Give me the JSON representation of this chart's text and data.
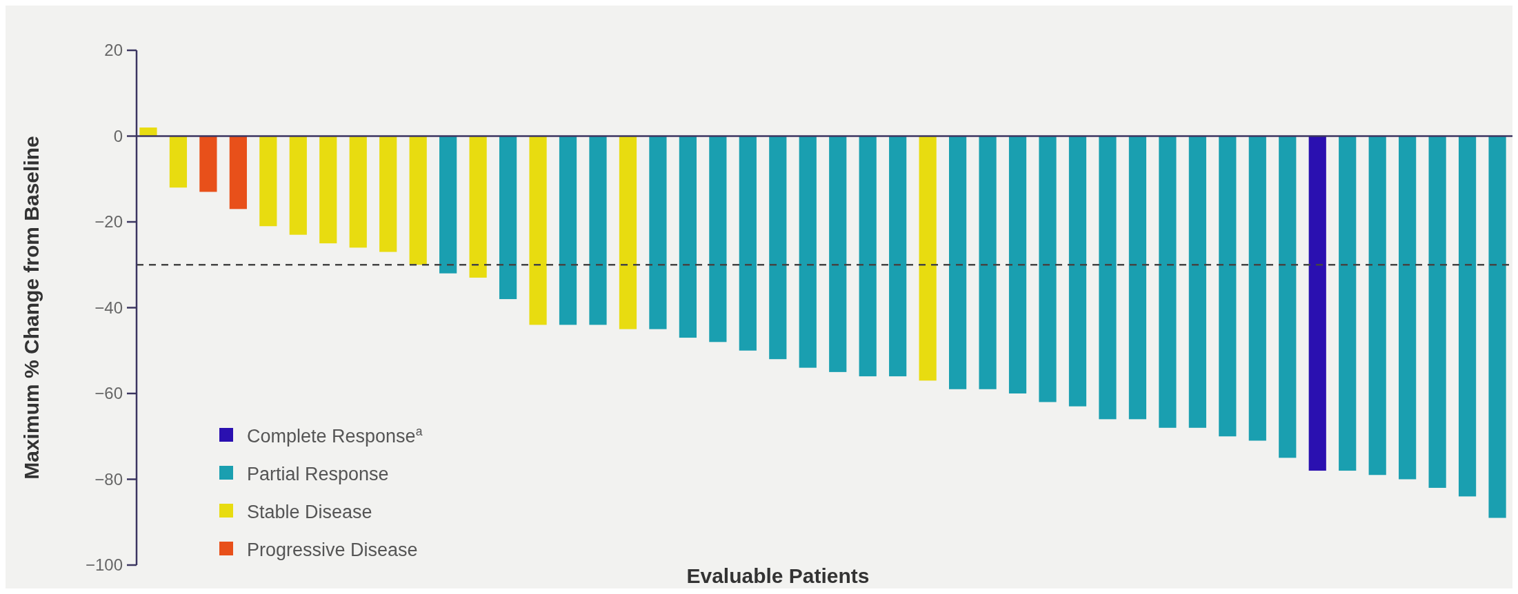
{
  "chart_data": {
    "type": "bar",
    "xlabel": "Evaluable Patients",
    "ylabel": "Maximum % Change from Baseline",
    "categories": [
      null,
      null,
      null,
      null,
      null,
      null,
      null,
      null,
      null,
      null,
      null,
      null,
      null,
      null,
      null,
      null,
      null,
      null,
      null,
      null,
      null,
      null,
      null,
      null,
      null,
      null,
      null,
      null,
      null,
      null,
      null,
      null,
      null,
      null,
      null,
      null,
      null,
      null,
      null,
      null,
      null,
      null,
      null,
      null,
      null,
      null
    ],
    "series": [
      {
        "name": "Complete Response$^{a}$",
        "color": "#2a10b0",
        "values": [
          null,
          null,
          null,
          null,
          null,
          null,
          null,
          null,
          null,
          null,
          null,
          null,
          null,
          null,
          null,
          null,
          null,
          null,
          null,
          null,
          null,
          null,
          null,
          null,
          null,
          null,
          null,
          null,
          null,
          null,
          null,
          null,
          null,
          null,
          null,
          null,
          null,
          null,
          null,
          -78,
          null,
          null,
          null,
          null,
          null,
          null
        ]
      },
      {
        "name": "Partial Response",
        "color": "#1a9fb0",
        "values": [
          null,
          null,
          null,
          null,
          null,
          null,
          null,
          null,
          null,
          null,
          -32,
          null,
          -38,
          null,
          -44,
          -44,
          null,
          -45,
          -47,
          -48,
          -50,
          -52,
          -54,
          -55,
          -56,
          -56,
          null,
          -59,
          -59,
          -60,
          -62,
          -63,
          -66,
          -66,
          -68,
          -68,
          -70,
          -71,
          -75,
          null,
          -78,
          -79,
          -80,
          -82,
          -84,
          -89
        ]
      },
      {
        "name": "Stable Disease",
        "color": "#e8dc10",
        "values": [
          2,
          -12,
          null,
          null,
          -21,
          -23,
          -25,
          -26,
          -27,
          -30,
          null,
          -33,
          null,
          -44,
          null,
          null,
          -45,
          null,
          null,
          null,
          null,
          null,
          null,
          null,
          null,
          null,
          -57,
          null,
          null,
          null,
          null,
          null,
          null,
          null,
          null,
          null,
          null,
          null,
          null,
          null,
          null,
          null,
          null,
          null,
          null,
          null
        ]
      },
      {
        "name": "Progressive Disease",
        "color": "#e8501a",
        "values": [
          null,
          null,
          -13,
          -17,
          null,
          null,
          null,
          null,
          null,
          null,
          null,
          null,
          null,
          null,
          null,
          null,
          null,
          null,
          null,
          null,
          null,
          null,
          null,
          null,
          null,
          null,
          null,
          null,
          null,
          null,
          null,
          null,
          null,
          null,
          null,
          null,
          null,
          null,
          null,
          null,
          null,
          null,
          null,
          null,
          null,
          null
        ]
      }
    ],
    "ylim": [
      -100,
      20
    ],
    "yticks": [
      {
        "value": -100,
        "label": "−100"
      },
      {
        "value": -80,
        "label": "−80"
      },
      {
        "value": -60,
        "label": "−60"
      },
      {
        "value": -40,
        "label": "−40"
      },
      {
        "value": -20,
        "label": "−20"
      },
      0,
      20
    ],
    "ref_lines": [
      {
        "axis": "y",
        "value": -30,
        "line_style": "dashed",
        "color": "#444444"
      }
    ],
    "legend": "bottom left"
  }
}
